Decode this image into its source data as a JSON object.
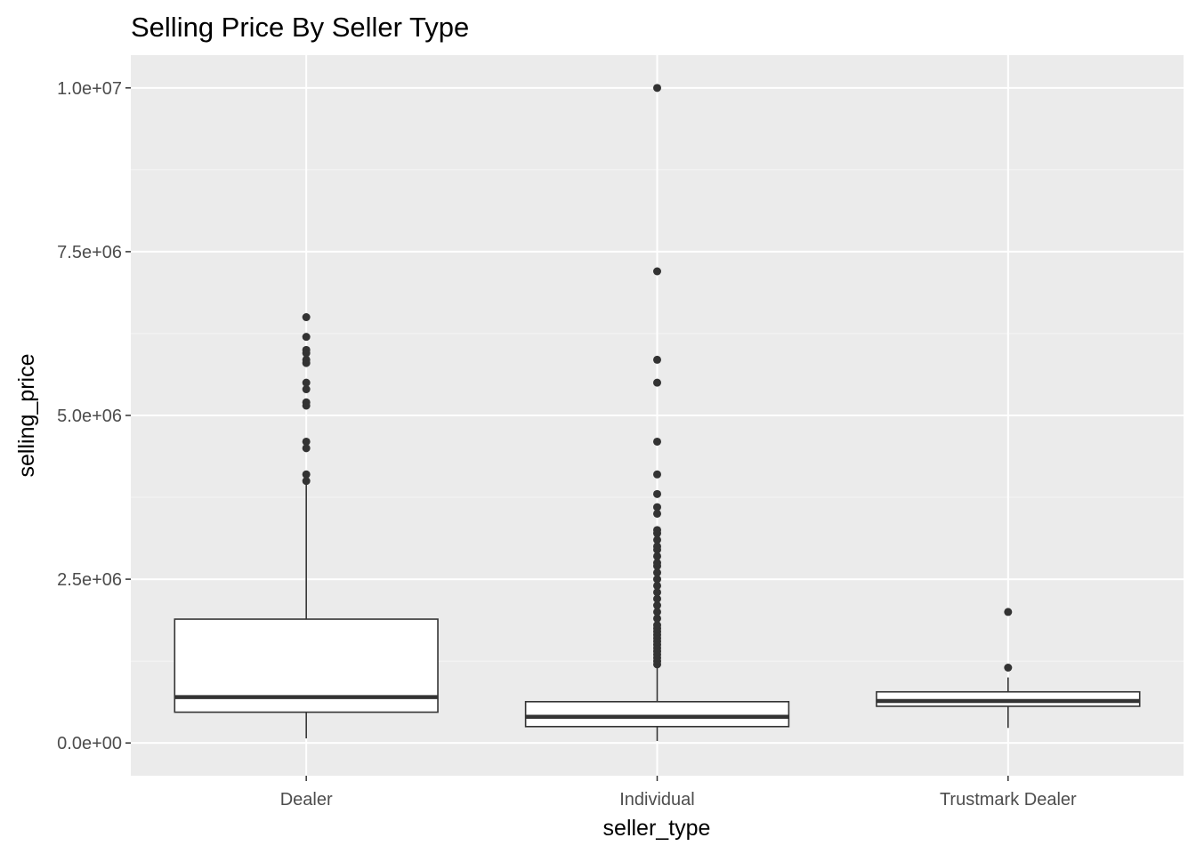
{
  "chart_data": {
    "type": "boxplot",
    "title": "Selling Price By Seller Type",
    "xlabel": "seller_type",
    "ylabel": "selling_price",
    "categories": [
      "Dealer",
      "Individual",
      "Trustmark Dealer"
    ],
    "ylim": [
      -500000,
      10500000
    ],
    "yticks": [
      0,
      2500000,
      5000000,
      7500000,
      10000000
    ],
    "ytick_labels": [
      "0.0e+00",
      "2.5e+06",
      "5.0e+06",
      "7.5e+06",
      "1.0e+07"
    ],
    "grid": true,
    "boxes": [
      {
        "category": "Dealer",
        "whisker_low": 70000,
        "q1": 470000,
        "median": 700000,
        "q3": 1890000,
        "whisker_high": 4000000,
        "outliers": [
          4000000,
          4100000,
          4500000,
          4600000,
          5150000,
          5200000,
          5400000,
          5500000,
          5800000,
          5850000,
          5950000,
          6000000,
          6200000,
          6500000
        ]
      },
      {
        "category": "Individual",
        "whisker_low": 30000,
        "q1": 250000,
        "median": 400000,
        "q3": 630000,
        "whisker_high": 1150000,
        "outliers": [
          1200000,
          1250000,
          1300000,
          1350000,
          1400000,
          1450000,
          1500000,
          1550000,
          1600000,
          1650000,
          1700000,
          1750000,
          1800000,
          1900000,
          2000000,
          2100000,
          2200000,
          2300000,
          2400000,
          2500000,
          2600000,
          2700000,
          2750000,
          2850000,
          2950000,
          3000000,
          3100000,
          3200000,
          3250000,
          3500000,
          3600000,
          3800000,
          4100000,
          4600000,
          5500000,
          5850000,
          7200000,
          10000000
        ]
      },
      {
        "category": "Trustmark Dealer",
        "whisker_low": 230000,
        "q1": 560000,
        "median": 640000,
        "q3": 780000,
        "whisker_high": 1000000,
        "outliers": [
          1150000,
          2000000
        ]
      }
    ],
    "colors": {
      "panel_background": "#ebebeb",
      "grid_major": "#ffffff",
      "grid_minor": "#f5f5f5",
      "box_fill": "#ffffff",
      "box_line": "#333333",
      "outlier": "#333333",
      "tick_mark": "#333333"
    }
  }
}
